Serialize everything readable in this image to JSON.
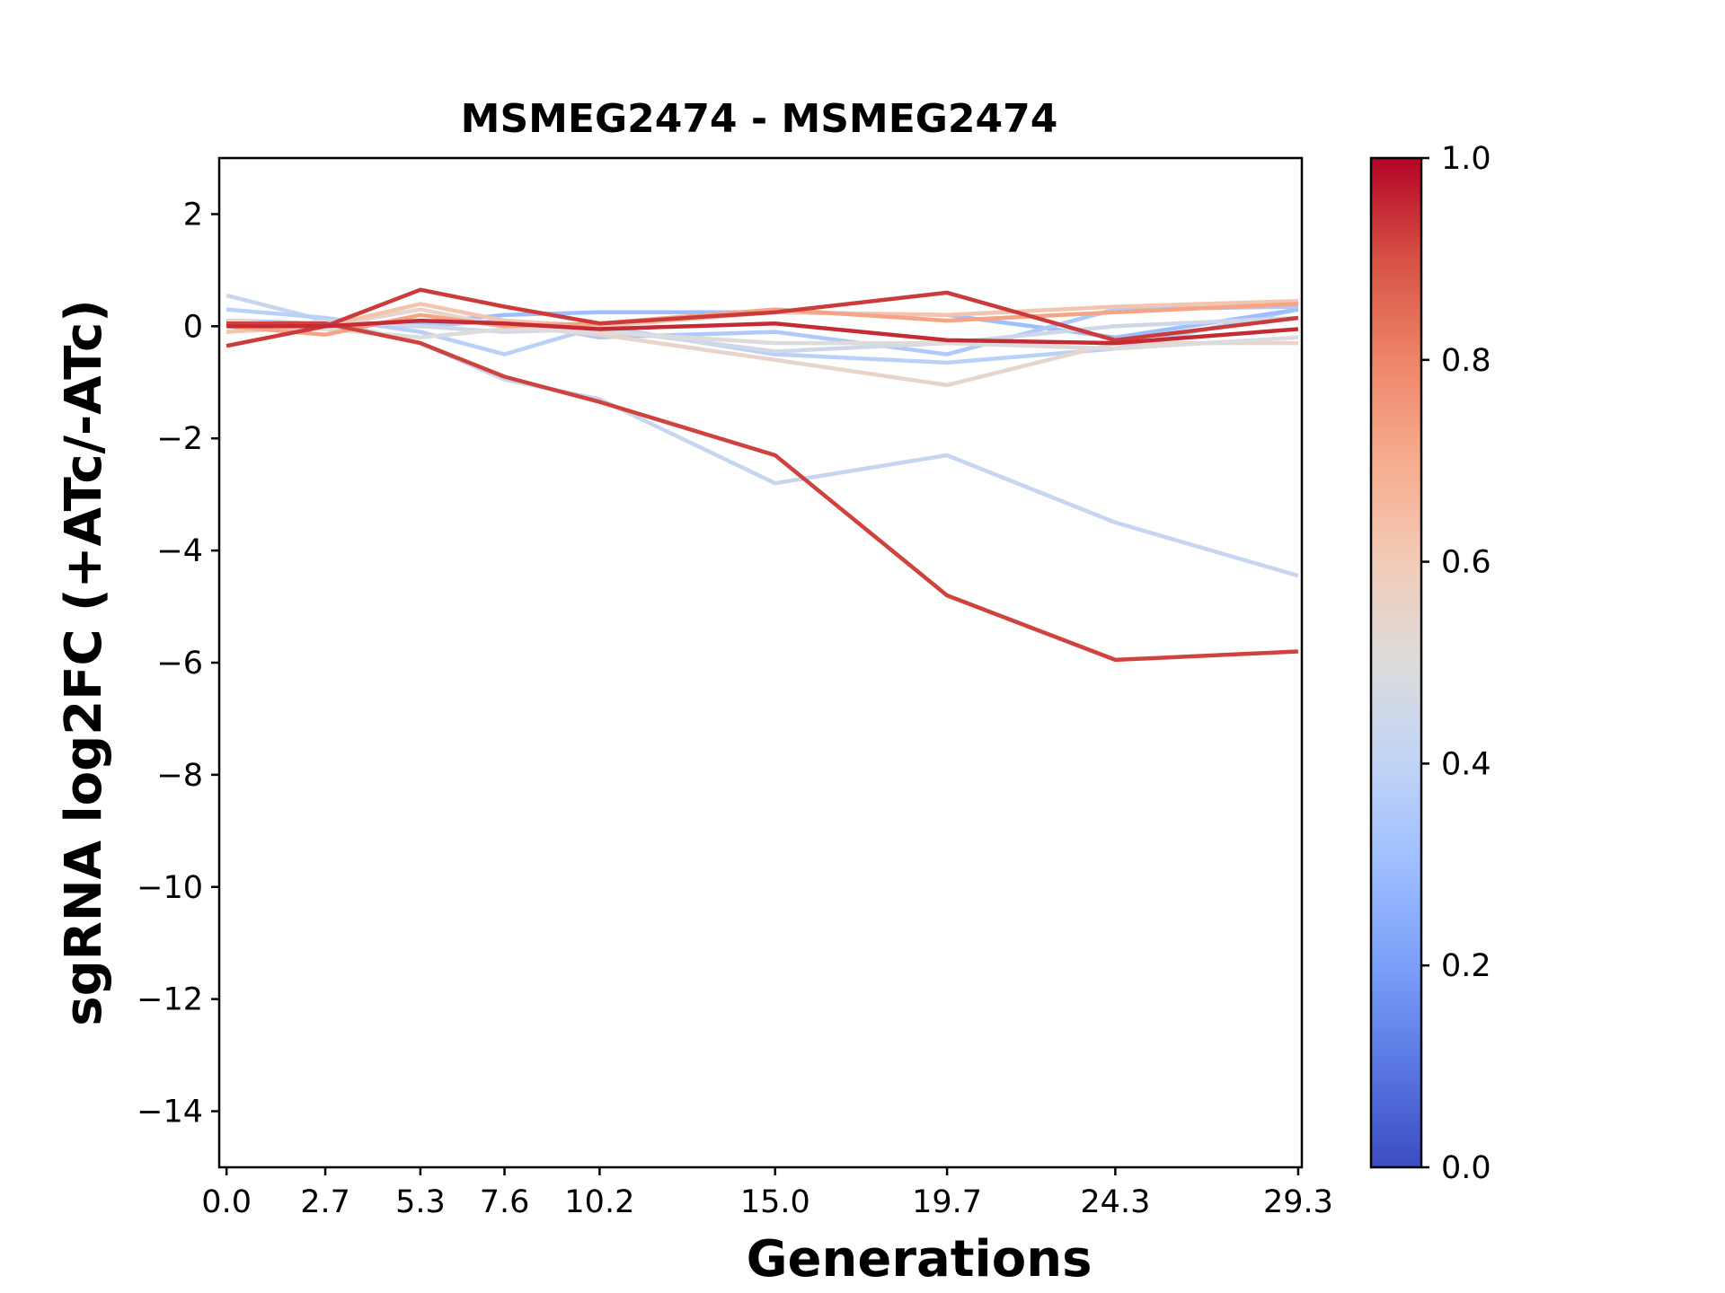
{
  "chart_data": {
    "type": "line",
    "title": "MSMEG2474 - MSMEG2474",
    "xlabel": "Generations",
    "ylabel": "sgRNA log2FC (+ATc/-ATc)",
    "x": [
      0.0,
      2.7,
      5.3,
      7.6,
      10.2,
      15.0,
      19.7,
      24.3,
      29.3
    ],
    "xticklabels": [
      "0.0",
      "2.7",
      "5.3",
      "7.6",
      "10.2",
      "15.0",
      "19.7",
      "24.3",
      "29.3"
    ],
    "xlim": [
      -0.2,
      29.4
    ],
    "ylim": [
      -15,
      3
    ],
    "yticks": [
      2,
      0,
      -2,
      -4,
      -6,
      -8,
      -10,
      -12,
      -14
    ],
    "yticklabels": [
      "2",
      "0",
      "−2",
      "−4",
      "−6",
      "−8",
      "−10",
      "−12",
      "−14"
    ],
    "colorbar": {
      "colormap": "coolwarm",
      "range": [
        0.0,
        1.0
      ],
      "ticks": [
        0.0,
        0.2,
        0.4,
        0.6,
        0.8,
        1.0
      ],
      "ticklabels": [
        "0.0",
        "0.2",
        "0.4",
        "0.6",
        "0.8",
        "1.0"
      ],
      "colors": [
        "#3b4cc0",
        "#5977e3",
        "#7b9ff9",
        "#9ebeff",
        "#c0d4f5",
        "#dddcdc",
        "#f2cbb7",
        "#f7ac8e",
        "#ee8468",
        "#d65244",
        "#b40426"
      ]
    },
    "series": [
      {
        "color_value": 0.42,
        "values": [
          0.55,
          0.1,
          -0.3,
          -0.95,
          -1.3,
          -2.8,
          -2.3,
          -3.5,
          -4.45
        ]
      },
      {
        "color_value": 0.38,
        "values": [
          0.3,
          0.15,
          -0.1,
          -0.5,
          0.0,
          -0.5,
          -0.65,
          -0.4,
          0.3
        ]
      },
      {
        "color_value": 0.3,
        "values": [
          0.1,
          0.05,
          0.05,
          0.2,
          0.25,
          0.25,
          0.2,
          -0.2,
          0.3
        ]
      },
      {
        "color_value": 0.35,
        "values": [
          0.0,
          0.05,
          0.0,
          0.1,
          -0.2,
          -0.1,
          -0.5,
          0.3,
          0.35
        ]
      },
      {
        "color_value": 0.45,
        "values": [
          -0.1,
          0.1,
          0.0,
          -0.1,
          -0.05,
          -0.45,
          -0.3,
          0.0,
          0.15
        ]
      },
      {
        "color_value": 0.55,
        "values": [
          0.1,
          0.0,
          0.3,
          0.0,
          -0.15,
          -0.6,
          -1.05,
          -0.3,
          -0.3
        ]
      },
      {
        "color_value": 0.5,
        "values": [
          0.05,
          -0.05,
          -0.2,
          -0.05,
          -0.1,
          -0.3,
          -0.3,
          -0.4,
          -0.2
        ]
      },
      {
        "color_value": 0.62,
        "values": [
          -0.1,
          0.0,
          0.4,
          0.1,
          0.0,
          0.25,
          0.2,
          0.35,
          0.45
        ]
      },
      {
        "color_value": 0.72,
        "values": [
          0.0,
          -0.15,
          0.2,
          0.0,
          0.05,
          0.3,
          0.1,
          0.25,
          0.4
        ]
      },
      {
        "color_value": 0.92,
        "values": [
          0.05,
          0.05,
          -0.3,
          -0.9,
          -1.35,
          -2.3,
          -4.8,
          -5.95,
          -5.8
        ]
      },
      {
        "color_value": 0.93,
        "values": [
          -0.35,
          0.0,
          0.65,
          0.35,
          0.05,
          0.25,
          0.6,
          -0.25,
          0.15
        ]
      },
      {
        "color_value": 0.95,
        "values": [
          0.0,
          0.0,
          0.1,
          0.05,
          -0.05,
          0.05,
          -0.25,
          -0.3,
          -0.05
        ]
      }
    ]
  }
}
